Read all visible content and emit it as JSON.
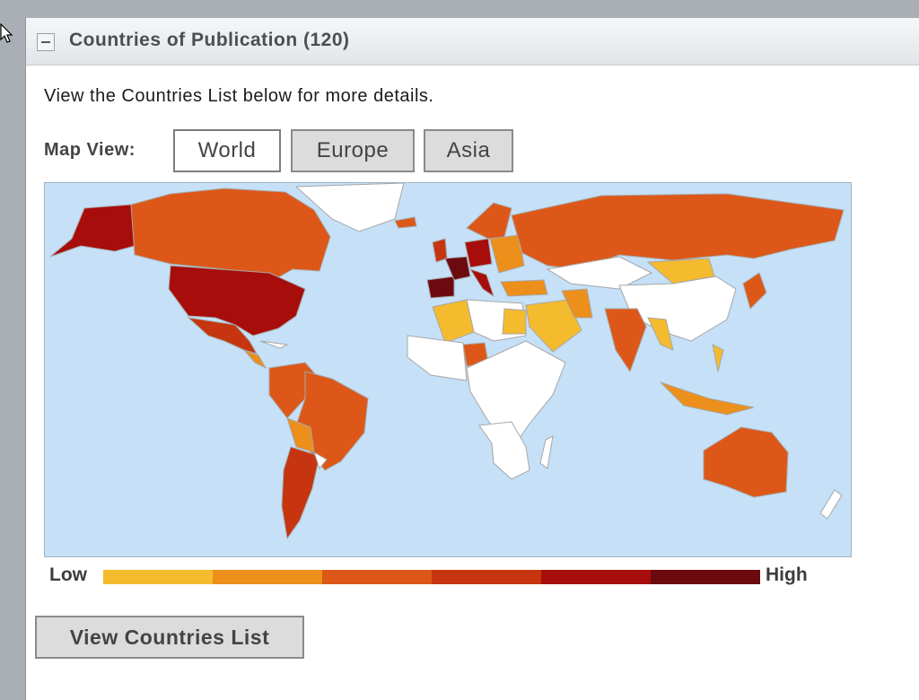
{
  "panel": {
    "title": "Countries of Publication (120)",
    "intro_text": "View the Countries List below for more details."
  },
  "map_view": {
    "label": "Map View:",
    "buttons": [
      {
        "label": "World",
        "selected": true
      },
      {
        "label": "Europe",
        "selected": false
      },
      {
        "label": "Asia",
        "selected": false
      }
    ]
  },
  "legend": {
    "low_label": "Low",
    "high_label": "High",
    "scale_colors": [
      "#f5bb2e",
      "#ec8f1b",
      "#dd5818",
      "#c6350f",
      "#a70d0a",
      "#6b0a0f"
    ]
  },
  "colors": {
    "ocean": "#c5e0f7",
    "no_data": "#ffffff",
    "border": "#a7a7a7"
  },
  "list_button": {
    "label": "View Countries List"
  }
}
